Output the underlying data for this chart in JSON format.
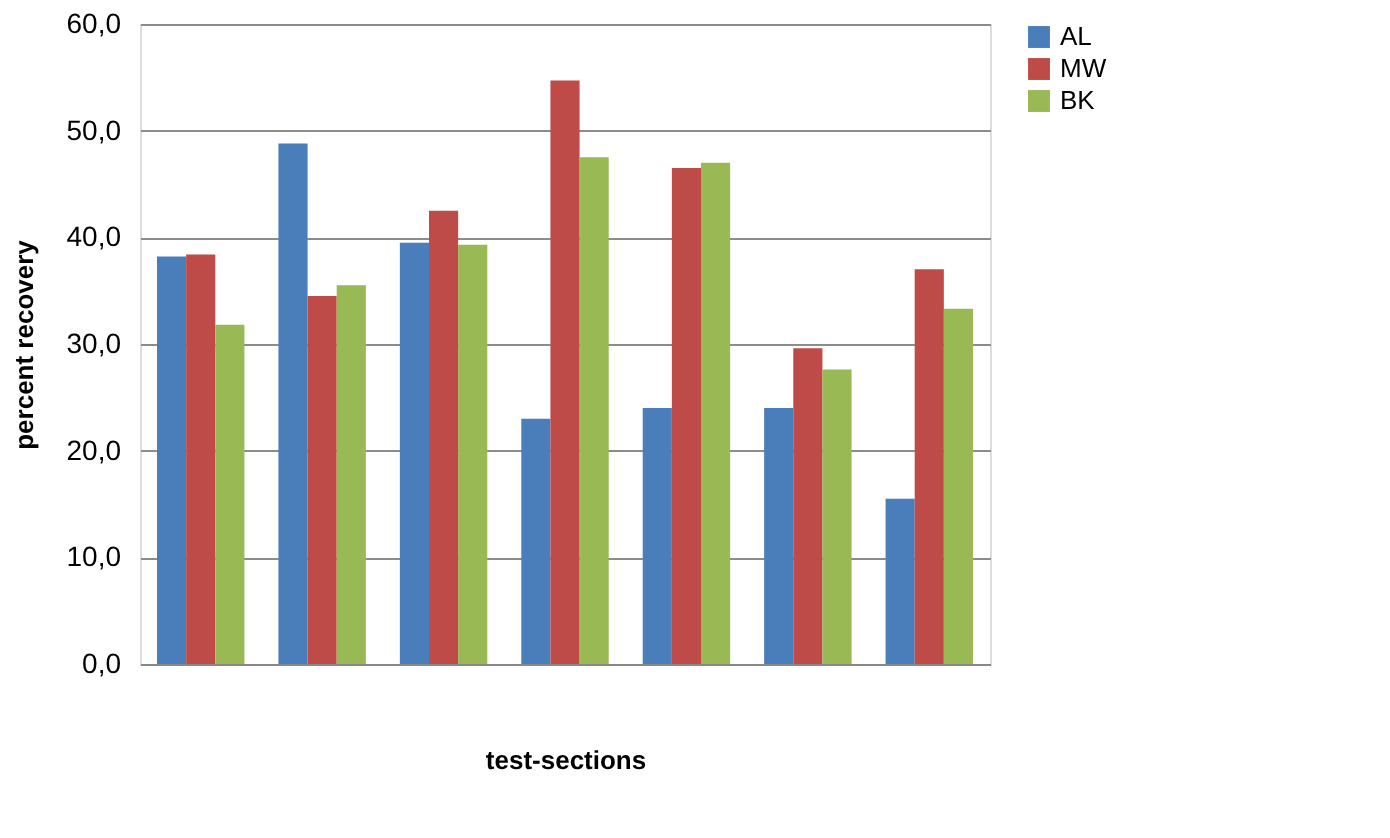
{
  "chart_data": {
    "type": "bar",
    "xlabel": "test-sections",
    "ylabel": "percent recovery",
    "categories": [
      null,
      null,
      null,
      null,
      null,
      null,
      null
    ],
    "series": [
      {
        "name": "AL",
        "color": "#4a7ebb",
        "values": [
          38.2,
          48.8,
          39.5,
          23.0,
          24.0,
          24.0,
          15.5
        ]
      },
      {
        "name": "MW",
        "color": "#be4b48",
        "values": [
          38.4,
          34.5,
          42.5,
          54.7,
          46.5,
          29.6,
          37.0
        ]
      },
      {
        "name": "BK",
        "color": "#98b954",
        "values": [
          31.8,
          35.5,
          39.3,
          47.5,
          47.0,
          27.6,
          33.3
        ]
      }
    ],
    "ylim": [
      0,
      60
    ],
    "yticks": [
      {
        "value": 0,
        "label": "0,0"
      },
      {
        "value": 10,
        "label": "10,0"
      },
      {
        "value": 20,
        "label": "20,0"
      },
      {
        "value": 30,
        "label": "30,0"
      },
      {
        "value": 40,
        "label": "40,0"
      },
      {
        "value": 50,
        "label": "50,0"
      },
      {
        "value": 60,
        "label": "60,0"
      }
    ],
    "grid": "y",
    "legend": "right"
  }
}
